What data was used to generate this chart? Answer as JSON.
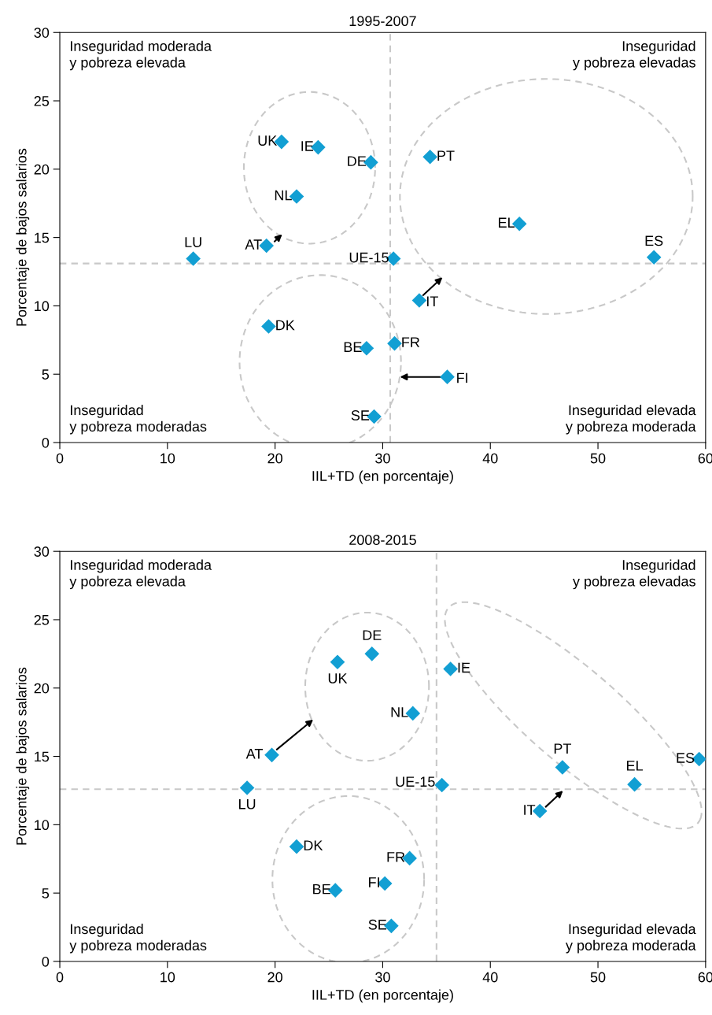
{
  "chart_data": [
    {
      "type": "scatter",
      "title": "1995-2007",
      "xlabel": "IIL+TD (en porcentaje)",
      "ylabel": "Porcentaje de bajos salarios",
      "xlim": [
        0,
        60
      ],
      "xticks": [
        0,
        10,
        20,
        30,
        40,
        50,
        60
      ],
      "ylim": [
        0,
        30
      ],
      "yticks": [
        0,
        5,
        10,
        15,
        20,
        25,
        30
      ],
      "marker": "diamond",
      "grid": false,
      "legend": false,
      "series": [
        {
          "color": "#129fd3",
          "x": [
            20.6,
            24.0,
            28.9,
            22.0,
            19.2,
            12.4,
            31.0,
            34.4,
            42.7,
            55.2,
            33.4,
            19.4,
            28.5,
            31.1,
            36.0,
            29.2
          ],
          "values": [
            22.0,
            21.6,
            20.5,
            18.0,
            14.4,
            13.45,
            13.45,
            20.9,
            16.0,
            13.55,
            10.4,
            8.5,
            6.9,
            7.25,
            4.8,
            1.9
          ]
        }
      ],
      "ref_lines": [
        {
          "axis": "x",
          "value": 30.7,
          "color": "#c8c8c8",
          "line_style": "dashed"
        },
        {
          "axis": "y",
          "value": 13.1,
          "color": "#c8c8c8",
          "line_style": "dashed"
        }
      ],
      "annotations": [
        "Inseguridad moderada\ny pobreza elevada",
        "Inseguridad\ny pobreza elevadas",
        "Inseguridad\ny pobreza moderadas",
        "Inseguridad elevada\ny pobreza moderada",
        {
          "text": "UK",
          "x": 20.6,
          "y": 22.0
        },
        {
          "text": "IE",
          "x": 24.0,
          "y": 21.6
        },
        {
          "text": "DE",
          "x": 28.9,
          "y": 20.5
        },
        {
          "text": "NL",
          "x": 22.0,
          "y": 18.0
        },
        {
          "text": "AT",
          "x": 19.2,
          "y": 14.4
        },
        {
          "text": "LU",
          "x": 12.4,
          "y": 13.45
        },
        {
          "text": "UE-15",
          "x": 31.0,
          "y": 13.45
        },
        {
          "text": "PT",
          "x": 34.4,
          "y": 20.9
        },
        {
          "text": "EL",
          "x": 42.7,
          "y": 16.0
        },
        {
          "text": "ES",
          "x": 55.2,
          "y": 13.55
        },
        {
          "text": "IT",
          "x": 33.4,
          "y": 10.4
        },
        {
          "text": "DK",
          "x": 19.4,
          "y": 8.5
        },
        {
          "text": "BE",
          "x": 28.5,
          "y": 6.9
        },
        {
          "text": "FR",
          "x": 31.1,
          "y": 7.25
        },
        {
          "text": "FI",
          "x": 36.0,
          "y": 4.8
        },
        {
          "text": "SE",
          "x": 29.2,
          "y": 1.9
        }
      ]
    },
    {
      "type": "scatter",
      "title": "2008-2015",
      "xlabel": "IIL+TD (en porcentaje)",
      "ylabel": "Porcentaje de bajos salarios",
      "xlim": [
        0,
        60
      ],
      "xticks": [
        0,
        10,
        20,
        30,
        40,
        50,
        60
      ],
      "ylim": [
        0,
        30
      ],
      "yticks": [
        0,
        5,
        10,
        15,
        20,
        25,
        30
      ],
      "marker": "diamond",
      "grid": false,
      "legend": false,
      "series": [
        {
          "color": "#129fd3",
          "x": [
            25.8,
            29.0,
            32.8,
            36.3,
            19.7,
            46.7,
            59.4,
            53.4,
            35.5,
            17.4,
            44.6,
            22.0,
            32.5,
            30.2,
            25.6,
            30.8
          ],
          "values": [
            21.9,
            22.5,
            18.15,
            21.4,
            15.1,
            14.2,
            14.8,
            12.95,
            12.9,
            12.7,
            11.0,
            8.4,
            7.55,
            5.7,
            5.2,
            2.6
          ]
        }
      ],
      "ref_lines": [
        {
          "axis": "x",
          "value": 35.0,
          "color": "#c8c8c8",
          "line_style": "dashed"
        },
        {
          "axis": "y",
          "value": 12.6,
          "color": "#c8c8c8",
          "line_style": "dashed"
        }
      ],
      "annotations": [
        "Inseguridad moderada\ny pobreza elevada",
        "Inseguridad\ny pobreza elevadas",
        "Inseguridad\ny pobreza moderadas",
        "Inseguridad elevada\ny pobreza moderada",
        {
          "text": "UK",
          "x": 25.8,
          "y": 21.9
        },
        {
          "text": "DE",
          "x": 29.0,
          "y": 22.5
        },
        {
          "text": "NL",
          "x": 32.8,
          "y": 18.15
        },
        {
          "text": "IE",
          "x": 36.3,
          "y": 21.4
        },
        {
          "text": "AT",
          "x": 19.7,
          "y": 15.1
        },
        {
          "text": "PT",
          "x": 46.7,
          "y": 14.2
        },
        {
          "text": "ES",
          "x": 59.4,
          "y": 14.8
        },
        {
          "text": "EL",
          "x": 53.4,
          "y": 12.95
        },
        {
          "text": "UE-15",
          "x": 35.5,
          "y": 12.9
        },
        {
          "text": "LU",
          "x": 17.4,
          "y": 12.7
        },
        {
          "text": "IT",
          "x": 44.6,
          "y": 11.0
        },
        {
          "text": "DK",
          "x": 22.0,
          "y": 8.4
        },
        {
          "text": "FR",
          "x": 32.5,
          "y": 7.55
        },
        {
          "text": "FI",
          "x": 30.2,
          "y": 5.7
        },
        {
          "text": "BE",
          "x": 25.6,
          "y": 5.2
        },
        {
          "text": "SE",
          "x": 30.8,
          "y": 2.6
        }
      ]
    }
  ]
}
